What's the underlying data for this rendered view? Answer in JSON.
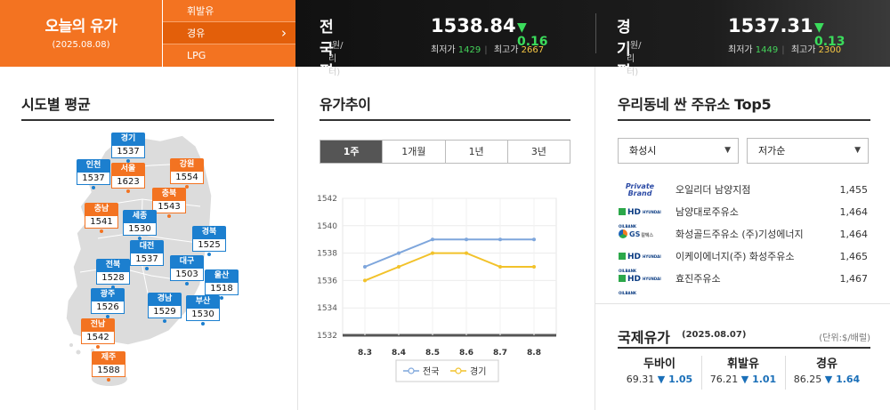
{
  "header": {
    "title": "오늘의 유가",
    "date": "(2025.08.08)",
    "fuel_tabs": [
      {
        "label": "휘발유",
        "active": false
      },
      {
        "label": "경유",
        "active": true
      },
      {
        "label": "LPG",
        "active": false
      }
    ],
    "national": {
      "label": "전국평균",
      "unit": "(원/리터)",
      "price": "1538.84",
      "change": "▼ 0.16",
      "min_label": "최저가",
      "min": "1429",
      "max_label": "최고가",
      "max": "2667"
    },
    "gyeonggi": {
      "label": "경기평균",
      "unit": "(원/리터)",
      "price": "1537.31",
      "change": "▼ 0.13",
      "min_label": "최저가",
      "min": "1449",
      "max_label": "최고가",
      "max": "2300"
    }
  },
  "regional": {
    "title": "시도별 평균",
    "regions": [
      {
        "name": "경기",
        "price": "1537",
        "color": "blue"
      },
      {
        "name": "인천",
        "price": "1537",
        "color": "blue"
      },
      {
        "name": "서울",
        "price": "1623",
        "color": "orange"
      },
      {
        "name": "강원",
        "price": "1554",
        "color": "orange"
      },
      {
        "name": "충북",
        "price": "1543",
        "color": "orange"
      },
      {
        "name": "충남",
        "price": "1541",
        "color": "orange"
      },
      {
        "name": "세종",
        "price": "1530",
        "color": "blue"
      },
      {
        "name": "경북",
        "price": "1525",
        "color": "blue"
      },
      {
        "name": "대전",
        "price": "1537",
        "color": "blue"
      },
      {
        "name": "전북",
        "price": "1528",
        "color": "blue"
      },
      {
        "name": "대구",
        "price": "1503",
        "color": "blue"
      },
      {
        "name": "울산",
        "price": "1518",
        "color": "blue"
      },
      {
        "name": "광주",
        "price": "1526",
        "color": "blue"
      },
      {
        "name": "경남",
        "price": "1529",
        "color": "blue"
      },
      {
        "name": "부산",
        "price": "1530",
        "color": "blue"
      },
      {
        "name": "전남",
        "price": "1542",
        "color": "orange"
      },
      {
        "name": "제주",
        "price": "1588",
        "color": "orange"
      }
    ]
  },
  "trend": {
    "title": "유가추이",
    "periods": [
      {
        "label": "1주",
        "active": true
      },
      {
        "label": "1개월",
        "active": false
      },
      {
        "label": "1년",
        "active": false
      },
      {
        "label": "3년",
        "active": false
      }
    ]
  },
  "chart_data": {
    "type": "line",
    "categories": [
      "8.3",
      "8.4",
      "8.5",
      "8.6",
      "8.7",
      "8.8"
    ],
    "series": [
      {
        "name": "전국",
        "color": "#7ea6dc",
        "values": [
          1537,
          1538,
          1539,
          1539,
          1539,
          1539
        ]
      },
      {
        "name": "경기",
        "color": "#f2c22a",
        "values": [
          1536,
          1537,
          1538,
          1538,
          1537,
          1537
        ]
      }
    ],
    "ylim": [
      1532,
      1542
    ],
    "yticks": [
      1532,
      1534,
      1536,
      1538,
      1540,
      1542
    ],
    "grid": true,
    "legend": "bottom"
  },
  "cheap": {
    "title": "우리동네 싼 주유소 Top5",
    "city_select": "화성시",
    "sort_select": "저가순",
    "stations": [
      {
        "brand": "private",
        "brand_text": [
          "Private",
          "Brand"
        ],
        "name": "오일리더 남양지점",
        "price": "1,455"
      },
      {
        "brand": "hd",
        "brand_text": [
          "HD",
          "HYUNDAI OILBANK"
        ],
        "name": "남양대로주유소",
        "price": "1,464"
      },
      {
        "brand": "gs",
        "brand_text": [
          "GS",
          "칼텍스"
        ],
        "name": "화성골드주유소 (주)기성에너지",
        "price": "1,464"
      },
      {
        "brand": "hd",
        "brand_text": [
          "HD",
          "HYUNDAI OILBANK"
        ],
        "name": "이케이에너지(주) 화성주유소",
        "price": "1,465"
      },
      {
        "brand": "hd",
        "brand_text": [
          "HD",
          "HYUNDAI OILBANK"
        ],
        "name": "효진주유소",
        "price": "1,467"
      }
    ]
  },
  "international": {
    "title": "국제유가",
    "date": "(2025.08.07)",
    "unit": "(단위:$/배럴)",
    "items": [
      {
        "name": "두바이",
        "value": "69.31",
        "change": "▼ 1.05"
      },
      {
        "name": "휘발유",
        "value": "76.21",
        "change": "▼ 1.01"
      },
      {
        "name": "경유",
        "value": "86.25",
        "change": "▼ 1.64"
      }
    ]
  }
}
